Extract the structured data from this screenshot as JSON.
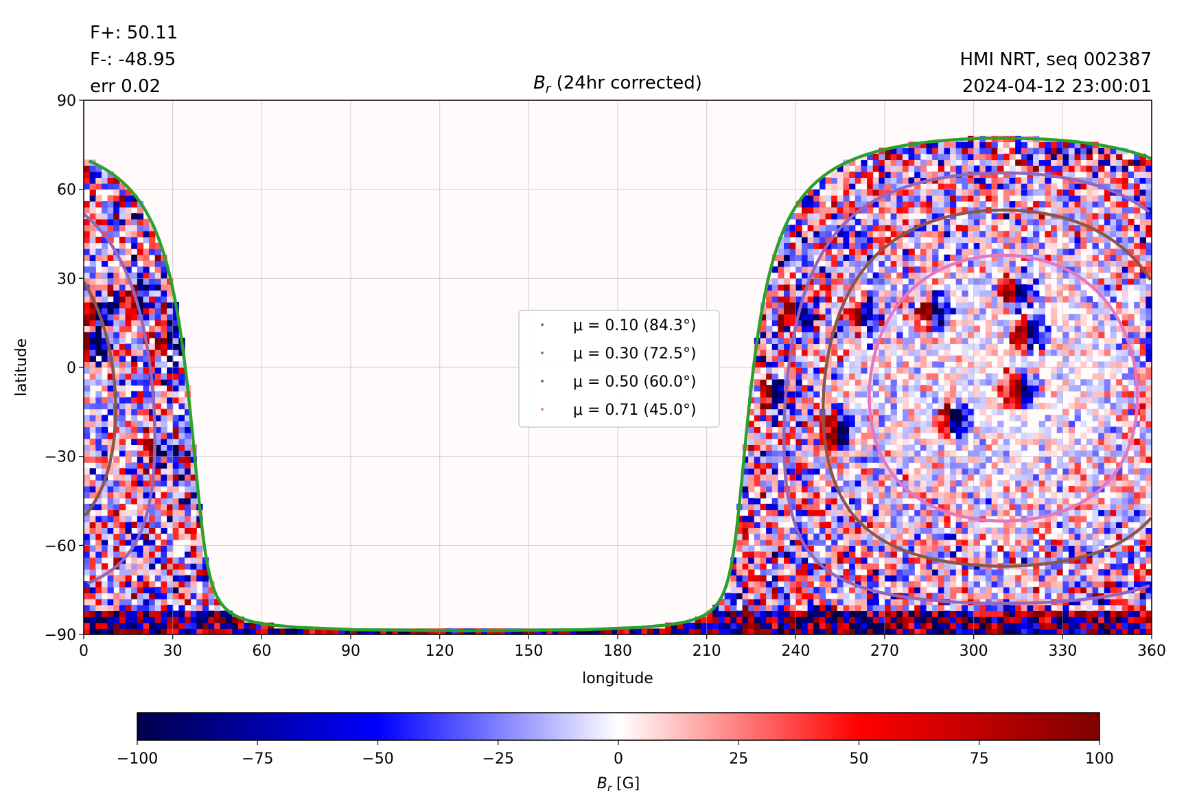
{
  "figure": {
    "stats": [
      "F+: 50.11",
      "F-: -48.95",
      "err 0.02"
    ],
    "source": "HMI NRT, seq 002387",
    "timestamp": "2024-04-12 23:00:01"
  },
  "chart_data": {
    "type": "heatmap",
    "title_symbol": "B",
    "title_sub": "r",
    "title_rest": " (24hr corrected)",
    "xlabel": "longitude",
    "ylabel": "latitude",
    "xlim": [
      0,
      360
    ],
    "ylim": [
      -90,
      90
    ],
    "xticks": [
      0,
      30,
      60,
      90,
      120,
      150,
      180,
      210,
      240,
      270,
      300,
      330,
      360
    ],
    "yticks": [
      -90,
      -60,
      -30,
      0,
      30,
      60,
      90
    ],
    "grid": true,
    "legend_placement": "center",
    "disk_center": {
      "lon": 310,
      "lat": -7
    },
    "series": [
      {
        "name": "μ = 0.10 (84.3°)",
        "mu": 0.1,
        "angle_deg": 84.3,
        "color": "#2ca02c"
      },
      {
        "name": "μ = 0.30 (72.5°)",
        "mu": 0.3,
        "angle_deg": 72.5,
        "color": "#9467bd"
      },
      {
        "name": "μ = 0.50 (60.0°)",
        "mu": 0.5,
        "angle_deg": 60.0,
        "color": "#8c564b"
      },
      {
        "name": "μ = 0.71 (45.0°)",
        "mu": 0.71,
        "angle_deg": 45.0,
        "color": "#e377c2"
      }
    ],
    "colorbar": {
      "label_symbol": "B",
      "label_sub": "r",
      "label_rest": " [G]",
      "range": [
        -100,
        100
      ],
      "ticks": [
        -100,
        -75,
        -50,
        -25,
        0,
        25,
        50,
        75,
        100
      ],
      "colormap": "seismic",
      "colors": [
        "#00004c",
        "#0000ff",
        "#ffffff",
        "#ff0000",
        "#7f0000"
      ]
    },
    "active_regions": [
      {
        "lon": 314,
        "lat": 26,
        "polarity": "mixed"
      },
      {
        "lon": 286,
        "lat": 19,
        "polarity": "mixed"
      },
      {
        "lon": 262,
        "lat": 17,
        "polarity": "mixed"
      },
      {
        "lon": 318,
        "lat": 11,
        "polarity": "mixed"
      },
      {
        "lon": 316,
        "lat": -7,
        "polarity": "mixed"
      },
      {
        "lon": 293,
        "lat": -18,
        "polarity": "mixed"
      },
      {
        "lon": 254,
        "lat": -21,
        "polarity": "mixed"
      },
      {
        "lon": 232,
        "lat": -10,
        "polarity": "mixed"
      },
      {
        "lon": 241,
        "lat": 18,
        "polarity": "mixed"
      },
      {
        "lon": 18,
        "lat": 23,
        "polarity": "mixed"
      },
      {
        "lon": 5,
        "lat": 18,
        "polarity": "mixed"
      },
      {
        "lon": 28,
        "lat": 10,
        "polarity": "mixed"
      },
      {
        "lon": 3,
        "lat": 8,
        "polarity": "mixed"
      },
      {
        "lon": 24,
        "lat": -28,
        "polarity": "mixed"
      }
    ]
  }
}
